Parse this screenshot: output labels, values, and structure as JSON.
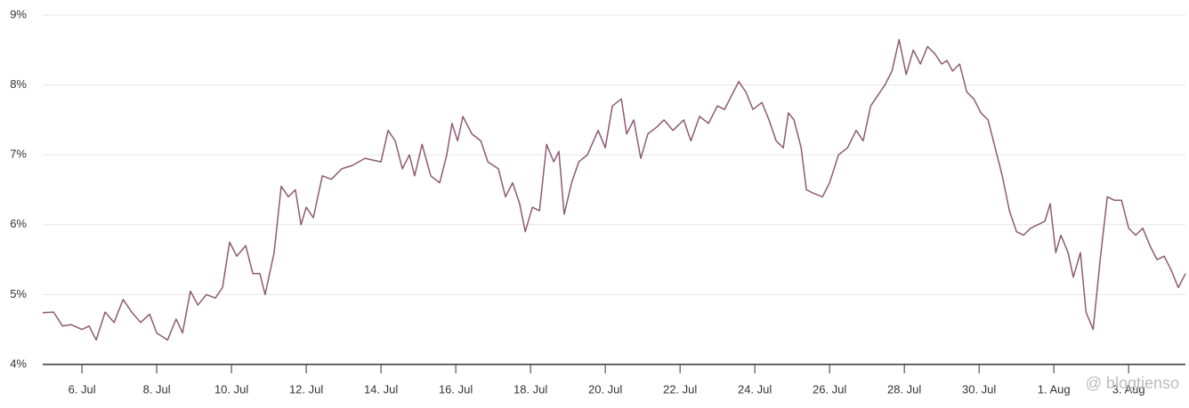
{
  "chart_data": {
    "type": "line",
    "x": [
      4.95,
      5.24,
      5.48,
      5.71,
      6.0,
      6.19,
      6.38,
      6.62,
      6.86,
      7.1,
      7.33,
      7.57,
      7.81,
      8.0,
      8.29,
      8.52,
      8.69,
      8.9,
      9.1,
      9.33,
      9.57,
      9.76,
      9.95,
      10.14,
      10.38,
      10.57,
      10.76,
      10.9,
      11.14,
      11.33,
      11.52,
      11.71,
      11.86,
      12.0,
      12.19,
      12.43,
      12.67,
      12.95,
      13.24,
      13.57,
      14.0,
      14.19,
      14.38,
      14.57,
      14.76,
      14.9,
      15.1,
      15.33,
      15.57,
      15.76,
      15.9,
      16.05,
      16.19,
      16.43,
      16.67,
      16.86,
      17.14,
      17.33,
      17.52,
      17.71,
      17.86,
      18.05,
      18.24,
      18.43,
      18.62,
      18.76,
      18.9,
      19.1,
      19.29,
      19.52,
      19.81,
      20.0,
      20.19,
      20.43,
      20.57,
      20.76,
      20.95,
      21.14,
      21.38,
      21.57,
      21.81,
      22.1,
      22.29,
      22.52,
      22.76,
      23.0,
      23.19,
      23.38,
      23.57,
      23.76,
      23.95,
      24.19,
      24.38,
      24.57,
      24.76,
      24.9,
      25.05,
      25.24,
      25.38,
      25.57,
      25.81,
      26.0,
      26.24,
      26.48,
      26.71,
      26.9,
      27.1,
      27.29,
      27.48,
      27.67,
      27.86,
      28.05,
      28.24,
      28.43,
      28.62,
      28.81,
      29.0,
      29.14,
      29.29,
      29.48,
      29.67,
      29.86,
      30.05,
      30.24,
      30.43,
      30.62,
      30.81,
      31.0,
      31.19,
      31.38,
      31.57,
      31.76,
      31.9,
      32.05,
      32.19,
      32.38,
      32.52,
      32.71,
      32.86,
      33.05,
      33.24,
      33.43,
      33.62,
      33.81,
      34.0,
      34.19,
      34.38,
      34.57,
      34.76,
      34.95,
      35.14,
      35.33,
      35.52
    ],
    "series": [
      {
        "color": "#8e5a6f",
        "values": [
          4.74,
          4.75,
          4.55,
          4.57,
          4.5,
          4.55,
          4.35,
          4.75,
          4.6,
          4.93,
          4.75,
          4.6,
          4.72,
          4.45,
          4.35,
          4.65,
          4.45,
          5.05,
          4.85,
          5.0,
          4.95,
          5.1,
          5.75,
          5.55,
          5.7,
          5.3,
          5.3,
          5.0,
          5.6,
          6.55,
          6.4,
          6.5,
          6.0,
          6.25,
          6.1,
          6.7,
          6.65,
          6.8,
          6.85,
          6.95,
          6.9,
          7.35,
          7.2,
          6.8,
          7.0,
          6.7,
          7.15,
          6.7,
          6.6,
          7.0,
          7.45,
          7.2,
          7.55,
          7.3,
          7.2,
          6.9,
          6.8,
          6.4,
          6.6,
          6.3,
          5.9,
          6.25,
          6.2,
          7.15,
          6.9,
          7.05,
          6.15,
          6.6,
          6.9,
          7.0,
          7.35,
          7.1,
          7.7,
          7.8,
          7.3,
          7.5,
          6.95,
          7.3,
          7.4,
          7.5,
          7.35,
          7.5,
          7.2,
          7.55,
          7.45,
          7.7,
          7.65,
          7.85,
          8.05,
          7.9,
          7.65,
          7.75,
          7.5,
          7.2,
          7.1,
          7.6,
          7.5,
          7.1,
          6.5,
          6.45,
          6.4,
          6.6,
          7.0,
          7.1,
          7.35,
          7.2,
          7.7,
          7.85,
          8.0,
          8.2,
          8.65,
          8.15,
          8.5,
          8.3,
          8.55,
          8.45,
          8.3,
          8.35,
          8.2,
          8.3,
          7.9,
          7.8,
          7.6,
          7.5,
          7.1,
          6.7,
          6.2,
          5.9,
          5.85,
          5.95,
          6.0,
          6.05,
          6.3,
          5.6,
          5.85,
          5.6,
          5.25,
          5.6,
          4.75,
          4.5,
          5.5,
          6.4,
          6.35,
          6.35,
          5.95,
          5.85,
          5.95,
          5.7,
          5.5,
          5.55,
          5.35,
          5.1,
          5.3
        ]
      }
    ],
    "xlim": [
      4.95,
      35.52
    ],
    "xticks": [
      {
        "value": 6,
        "label": "6. Jul"
      },
      {
        "value": 8,
        "label": "8. Jul"
      },
      {
        "value": 10,
        "label": "10. Jul"
      },
      {
        "value": 12,
        "label": "12. Jul"
      },
      {
        "value": 14,
        "label": "14. Jul"
      },
      {
        "value": 16,
        "label": "16. Jul"
      },
      {
        "value": 18,
        "label": "18. Jul"
      },
      {
        "value": 20,
        "label": "20. Jul"
      },
      {
        "value": 22,
        "label": "22. Jul"
      },
      {
        "value": 24,
        "label": "24. Jul"
      },
      {
        "value": 26,
        "label": "26. Jul"
      },
      {
        "value": 28,
        "label": "28. Jul"
      },
      {
        "value": 30,
        "label": "30. Jul"
      },
      {
        "value": 32,
        "label": "1. Aug"
      },
      {
        "value": 34,
        "label": "3. Aug"
      }
    ],
    "ylim": [
      4,
      9
    ],
    "yticks": [
      {
        "value": 4,
        "label": "4%"
      },
      {
        "value": 5,
        "label": "5%"
      },
      {
        "value": 6,
        "label": "6%"
      },
      {
        "value": 7,
        "label": "7%"
      },
      {
        "value": 8,
        "label": "8%"
      },
      {
        "value": 9,
        "label": "9%"
      }
    ],
    "grid": true,
    "watermark": "@ blogtienso"
  }
}
